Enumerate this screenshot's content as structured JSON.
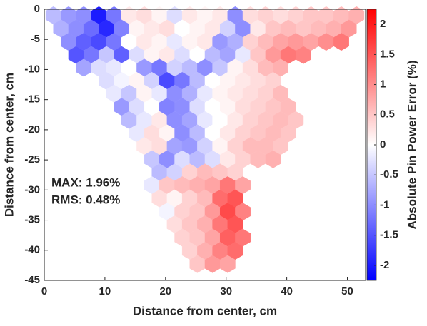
{
  "chart_data": {
    "type": "hexmap",
    "xlabel": "Distance from center, cm",
    "ylabel": "Distance from center, cm",
    "colorbar_label": "Absolute Pin Power Error (%)",
    "annotations": [
      "MAX: 1.96%",
      "RMS: 0.48%"
    ],
    "xlim": [
      0,
      53
    ],
    "ylim": [
      -45,
      0
    ],
    "xticks": [
      0,
      10,
      20,
      30,
      40,
      50
    ],
    "yticks": [
      0,
      -5,
      -10,
      -15,
      -20,
      -25,
      -30,
      -35,
      -40,
      -45
    ],
    "clim": [
      -2.25,
      2.25
    ],
    "cticks": [
      -2,
      -1.5,
      -1,
      -0.5,
      0,
      0.5,
      1,
      1.5,
      2
    ],
    "colormap": [
      "#0000ff",
      "#ffffff",
      "#ff0000"
    ],
    "pitch": 2.5,
    "rows": [
      {
        "y": -1,
        "x0": 1.5,
        "values": [
          -0.6,
          -0.9,
          -1,
          -2,
          -1.2,
          0.2,
          0.3,
          0.1,
          -0.3,
          0.2,
          0.1,
          0.2,
          -1,
          0.3,
          0.4,
          0.3,
          0.4,
          0.5,
          0.5,
          0.6,
          0.7
        ]
      },
      {
        "y": -3.2,
        "x0": 2.75,
        "values": [
          -0.7,
          -1,
          -1.3,
          -1.9,
          -1.1,
          0.1,
          0.2,
          0.3,
          0,
          0.1,
          0.2,
          -0.4,
          -1,
          0.2,
          0.5,
          0.6,
          0.5,
          0.6,
          0.7,
          0.9
        ]
      },
      {
        "y": -5.4,
        "x0": 4,
        "values": [
          -1,
          -1.4,
          -1.6,
          -1.2,
          0,
          0.2,
          0.1,
          -0.2,
          0.1,
          0.2,
          -0.9,
          -0.7,
          0.4,
          0.6,
          0.8,
          0.9,
          0.8,
          1,
          1.2
        ]
      },
      {
        "y": -7.6,
        "x0": 5.25,
        "values": [
          -1.5,
          -1.2,
          -0.5,
          -1.4,
          -0.3,
          0.1,
          0.2,
          -0.3,
          0,
          -0.6,
          -0.8,
          -0.2,
          0.5,
          0.9,
          1.2,
          1.1
        ]
      },
      {
        "y": -9.7,
        "x0": 6.5,
        "values": [
          -0.8,
          -0.3,
          -0.2,
          0,
          -0.9,
          -1.2,
          -0.4,
          -0.6,
          -1,
          -0.5,
          0.1,
          0.3,
          0.6,
          0.7
        ]
      },
      {
        "y": -11.9,
        "x0": 10.25,
        "values": [
          -0.3,
          -0.1,
          0.1,
          -0.4,
          -1.6,
          -1.2,
          -0.6,
          0,
          0.1,
          0.2,
          0.3,
          0.4
        ]
      },
      {
        "y": -14,
        "x0": 11.5,
        "values": [
          -0.2,
          -0.5,
          0.1,
          -0.2,
          -1,
          -0.7,
          -0.2,
          0.1,
          0.2,
          0.3,
          0.4,
          0.6
        ]
      },
      {
        "y": -16.2,
        "x0": 12.75,
        "values": [
          -0.9,
          -0.3,
          0,
          -1.1,
          -1,
          -0.3,
          0,
          0.1,
          0.3,
          0.4,
          0.5,
          0.6
        ]
      },
      {
        "y": -18.4,
        "x0": 14,
        "values": [
          -0.6,
          -0.2,
          0.2,
          -1,
          -0.8,
          -0.2,
          0,
          0.2,
          0.4,
          0.5,
          0.6,
          0.5
        ]
      },
      {
        "y": -20.6,
        "x0": 15.25,
        "values": [
          -0.2,
          0.3,
          0.1,
          -1,
          -0.6,
          0,
          0.2,
          0.4,
          0.5,
          0.6,
          0.5
        ]
      },
      {
        "y": -22.7,
        "x0": 16.5,
        "values": [
          0.2,
          0.3,
          -0.8,
          -0.9,
          -0.4,
          0.1,
          0.4,
          0.6,
          0.6,
          0.5
        ]
      },
      {
        "y": -24.9,
        "x0": 17.75,
        "values": [
          -0.5,
          -1,
          -0.3,
          -0.6,
          -0.3,
          0.2,
          0.4,
          0.6,
          0.7
        ]
      },
      {
        "y": -27.1,
        "x0": 19,
        "values": [
          -0.6,
          -0.4,
          0.4,
          0.6,
          0.5,
          0.4
        ]
      },
      {
        "y": -29.2,
        "x0": 17.75,
        "values": [
          -0.2,
          0.5,
          0.6,
          0.7,
          0.8,
          1.2,
          0.8
        ]
      },
      {
        "y": -31.4,
        "x0": 19,
        "values": [
          0.3,
          0.1,
          0.4,
          0.6,
          1.3,
          1.5
        ]
      },
      {
        "y": -33.6,
        "x0": 20.25,
        "values": [
          -0.1,
          0.4,
          0.5,
          0.9,
          1.6,
          1.1
        ]
      },
      {
        "y": -35.7,
        "x0": 21.5,
        "values": [
          0.3,
          0.5,
          0.7,
          1.2,
          1.5
        ]
      },
      {
        "y": -37.9,
        "x0": 22.75,
        "values": [
          0.4,
          0.5,
          0.8,
          1.4,
          1.2
        ]
      },
      {
        "y": -40.1,
        "x0": 24,
        "values": [
          0.4,
          0.7,
          1.1,
          1.3
        ]
      },
      {
        "y": -42.3,
        "x0": 25.25,
        "values": [
          0.5,
          0.9,
          0.8
        ]
      }
    ]
  }
}
